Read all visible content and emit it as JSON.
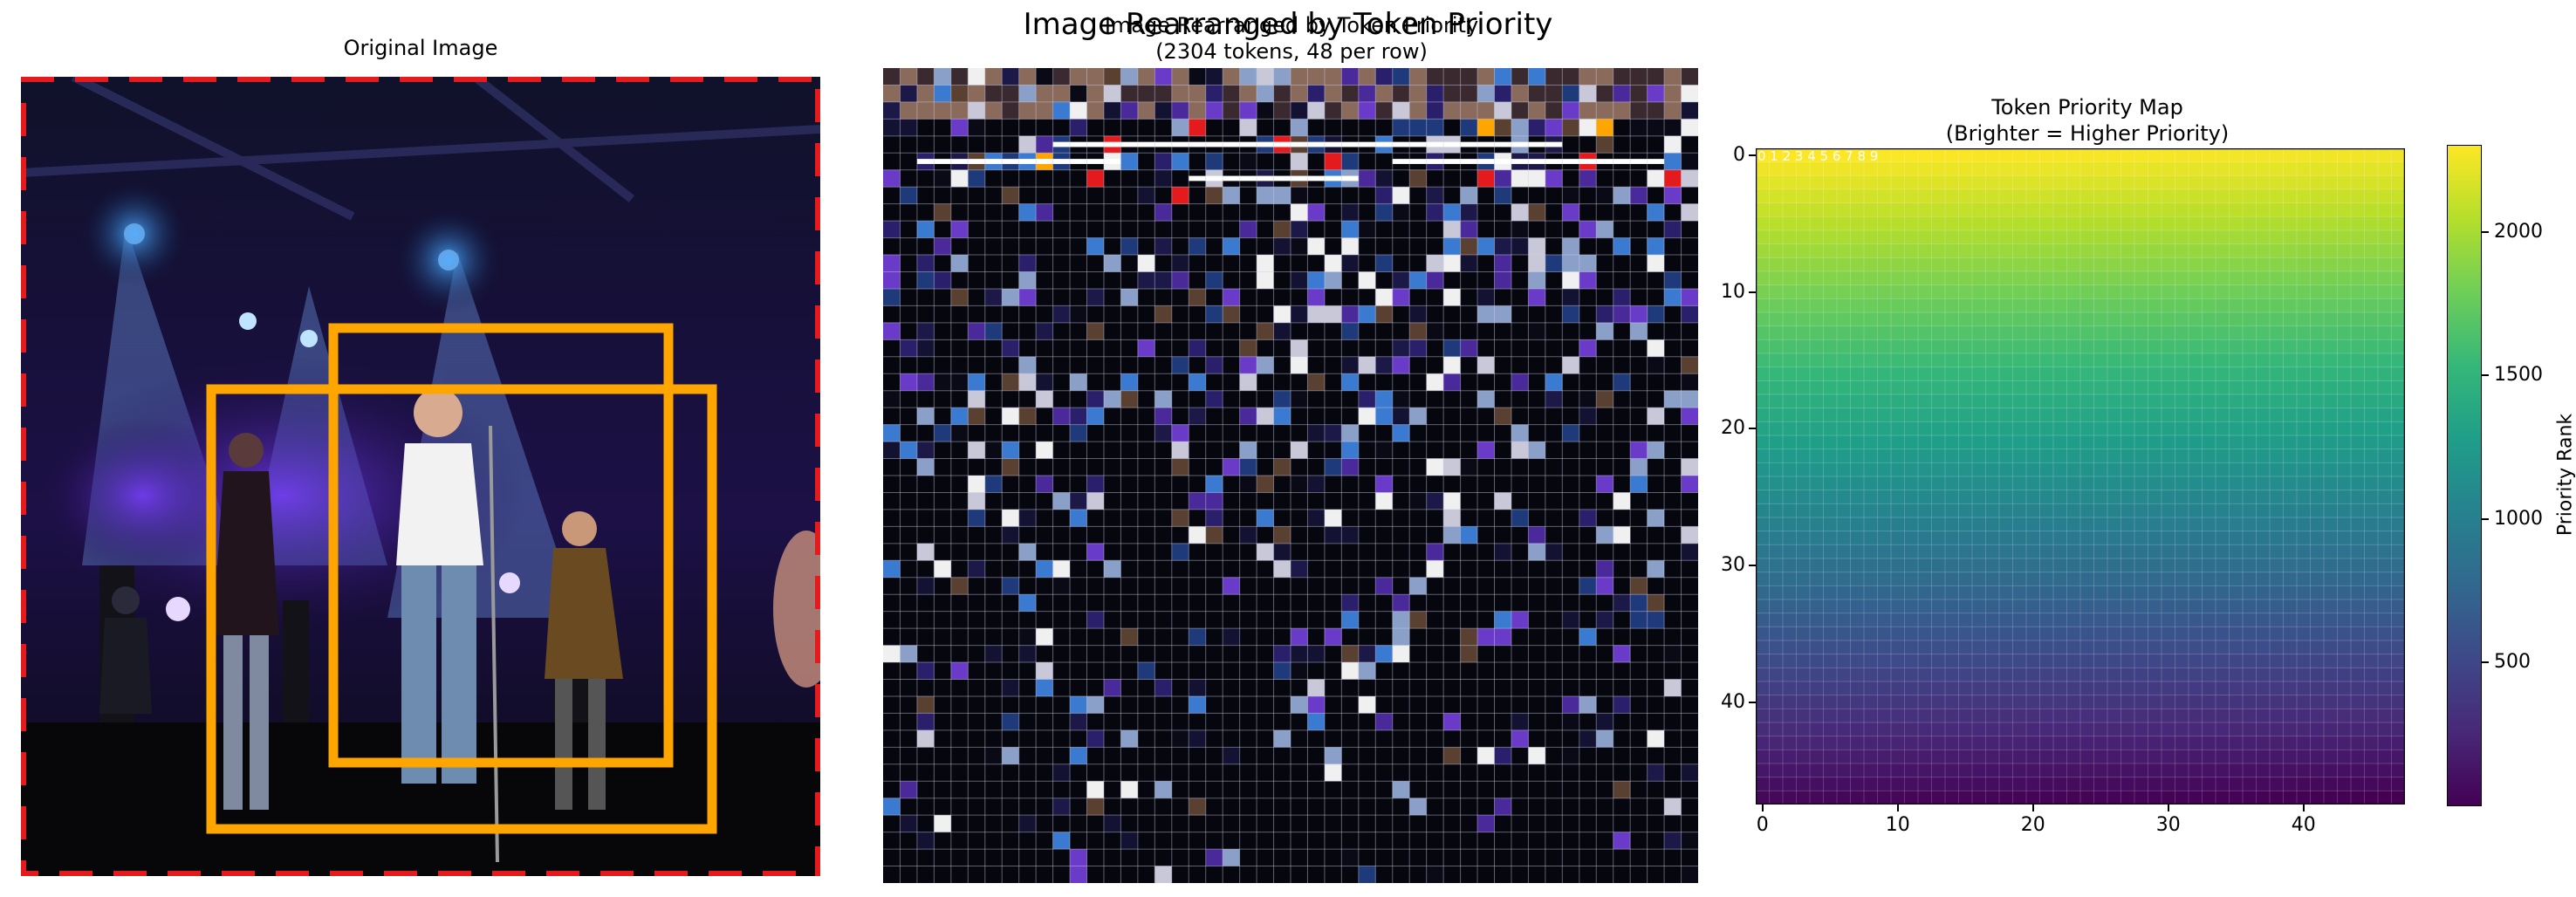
{
  "figure": {
    "suptitle": "Image Rearranged by Token Priority",
    "panel_titles": {
      "original": "Original Image",
      "rearranged": "Image Rearranged by Token Priority\n(2304 tokens, 48 per row)",
      "map": "Token Priority Map\n(Brighter = Higher Priority)"
    },
    "corner_labels": "0 1 2 3 4 5 6 7 8 9"
  },
  "colors": {
    "orange_box": "#ffa500",
    "red_dashed_border": "#e41a1c",
    "grid_line": "#cfcfe6",
    "background": "#ffffff"
  },
  "chart_data": [
    {
      "type": "image",
      "title": "Original Image",
      "annotations": [
        {
          "kind": "dashed-border",
          "color": "#e41a1c"
        },
        {
          "kind": "box",
          "color": "#ffa500"
        },
        {
          "kind": "box",
          "color": "#ffa500"
        }
      ]
    },
    {
      "type": "image-grid",
      "title": "Image Rearranged by Token Priority\n(2304 tokens, 48 per row)",
      "tokens": 2304,
      "per_row": 48
    },
    {
      "type": "heatmap",
      "title": "Token Priority Map\n(Brighter = Higher Priority)",
      "rows": 48,
      "cols": 48,
      "value_direction": "top rows highest, decreasing toward bottom",
      "value_range": [
        0,
        2303
      ],
      "colormap": "viridis",
      "xticks": [
        0,
        10,
        20,
        30,
        40
      ],
      "yticks": [
        0,
        10,
        20,
        30,
        40
      ],
      "colorbar": {
        "label": "Priority Rank",
        "ticks": [
          500,
          1000,
          1500,
          2000
        ],
        "range": [
          0,
          2303
        ]
      }
    }
  ]
}
